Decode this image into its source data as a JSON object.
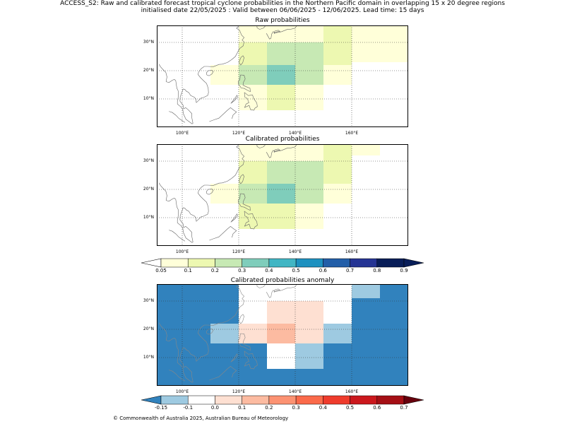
{
  "header": {
    "line1": "ACCESS_S2: Raw and calibrated forecast tropical cyclone probabilities in the Northern Pacific domain in overlapping 15 x 20 degree regions",
    "line2": "initialised date 22/05/2025 :  Valid between 06/06/2025 - 12/06/2025. Lead time: 15 days"
  },
  "panels": {
    "raw": {
      "title": "Raw probabilities"
    },
    "cal": {
      "title": "Calibrated probabilities"
    },
    "anom": {
      "title": "Calibrated probabilities anomaly"
    }
  },
  "axes": {
    "lat_labels": [
      "30°N",
      "20°N",
      "10°N"
    ],
    "lon_labels": [
      "100°E",
      "120°E",
      "140°E",
      "160°E"
    ]
  },
  "colorbars": {
    "prob": {
      "ticks": [
        "0.05",
        "0.1",
        "0.2",
        "0.3",
        "0.4",
        "0.5",
        "0.6",
        "0.7",
        "0.8",
        "0.9"
      ],
      "under": "#ffffff",
      "colors": [
        "#ffffd9",
        "#edf8b1",
        "#c7e9b4",
        "#7fcdbb",
        "#41b6c4",
        "#1d91c0",
        "#225ea8",
        "#253494",
        "#081d58"
      ],
      "over": "#081d58"
    },
    "anom": {
      "ticks": [
        "-0.15",
        "-0.1",
        "0.0",
        "0.1",
        "0.2",
        "0.3",
        "0.4",
        "0.5",
        "0.6",
        "0.7"
      ],
      "under": "#3182bd",
      "colors": [
        "#9ecae1",
        "#ffffff",
        "#fee0d2",
        "#fcbba1",
        "#fc9272",
        "#fb6a4a",
        "#ef3b2c",
        "#cb181d",
        "#a50f15"
      ],
      "over": "#67000d"
    }
  },
  "footer": "© Commonwealth of Australia 2025, Australian Bureau of Meteorology"
}
